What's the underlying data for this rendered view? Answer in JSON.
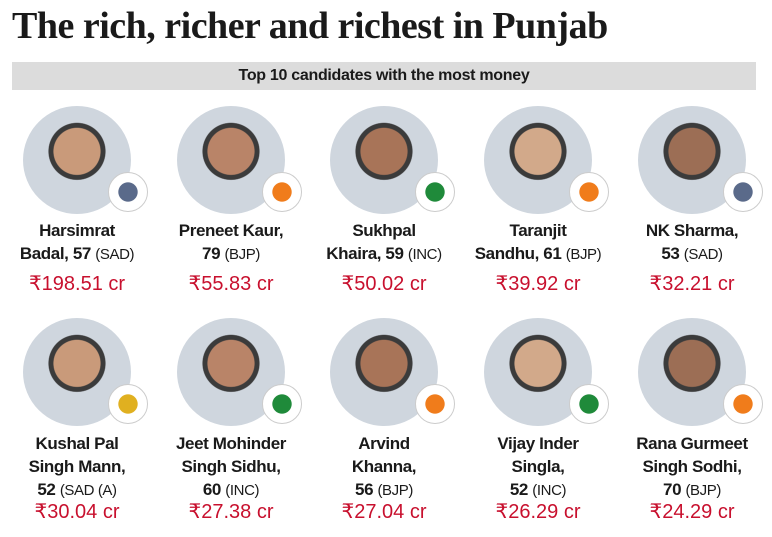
{
  "header": {
    "title": "The rich, richer and richest in Punjab",
    "subtitle": "Top 10 candidates with the most money"
  },
  "candidates": [
    {
      "name_lines": [
        "Harsimrat",
        "Badal, 57"
      ],
      "party": "(SAD)",
      "wealth": "₹198.51 cr"
    },
    {
      "name_lines": [
        "Preneet Kaur,",
        "79"
      ],
      "party": "(BJP)",
      "wealth": "₹55.83 cr"
    },
    {
      "name_lines": [
        "Sukhpal",
        "Khaira, 59"
      ],
      "party": "(INC)",
      "wealth": "₹50.02 cr"
    },
    {
      "name_lines": [
        "Taranjit",
        "Sandhu, 61"
      ],
      "party": "(BJP)",
      "wealth": "₹39.92 cr"
    },
    {
      "name_lines": [
        "NK Sharma,",
        "53"
      ],
      "party": "(SAD)",
      "wealth": "₹32.21 cr"
    },
    {
      "name_lines": [
        "Kushal Pal",
        "Singh Mann,",
        "52"
      ],
      "party": "(SAD (A)",
      "wealth": "₹30.04 cr"
    },
    {
      "name_lines": [
        "Jeet Mohinder",
        "Singh Sidhu,",
        "60"
      ],
      "party": "(INC)",
      "wealth": "₹27.38 cr"
    },
    {
      "name_lines": [
        "Arvind",
        "Khanna,",
        "56"
      ],
      "party": "(BJP)",
      "wealth": "₹27.04 cr"
    },
    {
      "name_lines": [
        "Vijay Inder",
        "Singla,",
        "52"
      ],
      "party": "(INC)",
      "wealth": "₹26.29 cr"
    },
    {
      "name_lines": [
        "Rana Gurmeet",
        "Singh Sodhi,",
        "70"
      ],
      "party": "(BJP)",
      "wealth": "₹24.29 cr"
    }
  ]
}
